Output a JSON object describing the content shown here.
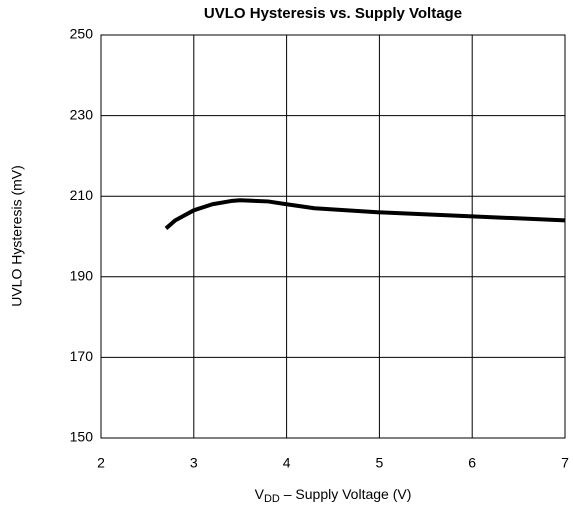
{
  "chart_data": {
    "type": "line",
    "title": "UVLO Hysteresis vs. Supply Voltage",
    "y_label": "UVLO Hysteresis (mV)",
    "x_label": {
      "main": "V",
      "sub": "DD",
      "rest": " – Supply Voltage (V)"
    },
    "x": [
      2.7,
      2.8,
      3.0,
      3.2,
      3.4,
      3.5,
      3.8,
      4.0,
      4.3,
      5.0,
      6.0,
      7.0
    ],
    "series": [
      {
        "name": "UVLO Hysteresis",
        "color": "#000000",
        "values": [
          202,
          204,
          206.5,
          208,
          208.8,
          209,
          208.7,
          208,
          207,
          206,
          205,
          204
        ]
      }
    ],
    "xlim": [
      2,
      7
    ],
    "xticks": [
      2,
      3,
      4,
      5,
      6,
      7
    ],
    "ylim": [
      150,
      250
    ],
    "yticks": [
      150,
      170,
      190,
      210,
      230,
      250
    ],
    "grid": true
  }
}
